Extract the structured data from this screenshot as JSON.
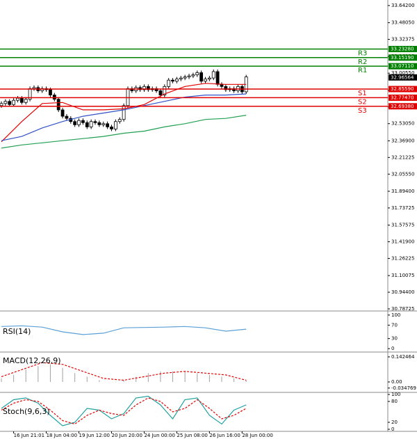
{
  "chart_data": [
    {
      "type": "candlestick",
      "open": [
        32.7,
        32.72,
        32.74,
        32.71,
        32.75,
        32.77,
        32.73,
        32.76,
        32.86,
        32.87,
        32.84,
        32.86,
        32.85,
        32.8,
        32.76,
        32.66,
        32.6,
        32.58,
        32.55,
        32.52,
        32.56,
        32.54,
        32.5,
        32.55,
        32.54,
        32.52,
        32.53,
        32.5,
        32.48,
        32.55,
        32.57,
        32.7,
        32.86,
        32.84,
        32.87,
        32.85,
        32.88,
        32.85,
        32.86,
        32.84,
        32.8,
        32.88,
        32.94,
        32.93,
        32.95,
        32.96,
        32.97,
        32.98,
        32.99,
        33.01,
        32.93,
        32.95,
        32.96,
        33.02,
        32.9,
        32.88,
        32.85,
        32.86,
        32.84,
        32.88,
        32.83
      ],
      "high": [
        32.74,
        32.76,
        32.76,
        32.77,
        32.79,
        32.79,
        32.78,
        32.88,
        32.89,
        32.89,
        32.88,
        32.88,
        32.87,
        32.82,
        32.78,
        32.68,
        32.62,
        32.6,
        32.57,
        32.58,
        32.58,
        32.56,
        32.57,
        32.57,
        32.56,
        32.55,
        32.55,
        32.52,
        32.57,
        32.59,
        32.72,
        32.88,
        32.88,
        32.89,
        32.89,
        32.9,
        32.9,
        32.88,
        32.88,
        32.86,
        32.9,
        32.96,
        32.96,
        32.97,
        32.98,
        32.99,
        33.0,
        33.01,
        33.03,
        33.03,
        32.97,
        32.98,
        33.04,
        33.04,
        32.92,
        32.9,
        32.88,
        32.88,
        32.9,
        32.9,
        32.99
      ],
      "low": [
        32.68,
        32.7,
        32.69,
        32.69,
        32.73,
        32.71,
        32.71,
        32.74,
        32.84,
        32.82,
        32.82,
        32.83,
        32.78,
        32.74,
        32.64,
        32.58,
        32.56,
        32.53,
        32.5,
        32.5,
        32.52,
        32.48,
        32.48,
        32.52,
        32.5,
        32.5,
        32.48,
        32.46,
        32.46,
        32.53,
        32.55,
        32.68,
        32.82,
        32.82,
        32.83,
        32.83,
        32.83,
        32.83,
        32.82,
        32.78,
        32.78,
        32.86,
        32.91,
        32.91,
        32.93,
        32.94,
        32.95,
        32.96,
        32.97,
        32.91,
        32.91,
        32.93,
        32.94,
        32.88,
        32.86,
        32.83,
        32.83,
        32.82,
        32.82,
        32.81,
        32.81
      ],
      "close": [
        32.72,
        32.74,
        32.71,
        32.75,
        32.77,
        32.73,
        32.76,
        32.86,
        32.87,
        32.84,
        32.86,
        32.85,
        32.8,
        32.76,
        32.66,
        32.6,
        32.58,
        32.55,
        32.52,
        32.56,
        32.54,
        32.5,
        32.55,
        32.54,
        32.52,
        32.53,
        32.5,
        32.48,
        32.55,
        32.57,
        32.7,
        32.86,
        32.84,
        32.87,
        32.85,
        32.88,
        32.85,
        32.86,
        32.84,
        32.8,
        32.88,
        32.94,
        32.93,
        32.95,
        32.96,
        32.97,
        32.98,
        32.99,
        33.01,
        32.93,
        32.95,
        32.96,
        33.02,
        32.9,
        32.88,
        32.85,
        32.86,
        32.84,
        32.88,
        32.83,
        32.97
      ],
      "up_color": "#ffffff",
      "down_color": "#000000",
      "wick_color": "#000000",
      "ylim": [
        30.774,
        33.681
      ],
      "yticks": [
        {
          "value": 33.642,
          "label": "33.64200"
        },
        {
          "value": 33.4805,
          "label": "33.48050"
        },
        33.32375,
        33.16225,
        {
          "value": 33.0055,
          "label": "33.00550"
        },
        {
          "value": 32.844,
          "label": "32.84400"
        },
        32.68725,
        {
          "value": 32.5305,
          "label": "32.53050"
        },
        {
          "value": 32.369,
          "label": "32.36900"
        },
        32.21225,
        {
          "value": 32.0555,
          "label": "32.05550"
        },
        {
          "value": 31.894,
          "label": "31.89400"
        },
        31.73725,
        31.57575,
        {
          "value": 31.419,
          "label": "31.41900"
        },
        31.26225,
        31.10075,
        {
          "value": 30.944,
          "label": "30.94400"
        },
        30.78725
      ],
      "xticks": [
        {
          "value": 3,
          "label": "16 Jun 21:01"
        },
        {
          "value": 11,
          "label": "18 Jun 04:00"
        },
        {
          "value": 19,
          "label": "19 Jun 12:00"
        },
        {
          "value": 27,
          "label": "20 Jun 20:00"
        },
        {
          "value": 35,
          "label": "24 Jun 00:00"
        },
        {
          "value": 43,
          "label": "25 Jun 08:00"
        },
        {
          "value": 51,
          "label": "26 Jun 16:00"
        },
        {
          "value": 59,
          "label": "28 Jun 00:00"
        }
      ],
      "series": [
        {
          "color": "#e00000",
          "x": [
            0,
            5,
            10,
            15,
            20,
            25,
            30,
            35,
            40,
            45,
            50,
            55,
            60
          ],
          "values": [
            32.36,
            32.55,
            32.72,
            32.73,
            32.66,
            32.66,
            32.67,
            32.71,
            32.81,
            32.88,
            32.91,
            32.9,
            32.9
          ]
        },
        {
          "color": "#3050c8",
          "x": [
            0,
            5,
            10,
            15,
            20,
            25,
            30,
            35,
            40,
            45,
            50,
            55,
            60
          ],
          "values": [
            32.37,
            32.41,
            32.49,
            32.55,
            32.6,
            32.63,
            32.66,
            32.7,
            32.74,
            32.78,
            32.8,
            32.8,
            32.81
          ]
        },
        {
          "color": "#20a050",
          "x": [
            0,
            5,
            10,
            15,
            20,
            25,
            30,
            35,
            40,
            45,
            50,
            55,
            60
          ],
          "values": [
            32.3,
            32.33,
            32.35,
            32.37,
            32.39,
            32.41,
            32.44,
            32.46,
            32.5,
            32.53,
            32.57,
            32.58,
            32.61
          ]
        }
      ],
      "levels": [
        {
          "label": "R3",
          "value": 33.2328,
          "value_label": "33.23280",
          "color": "#008000"
        },
        {
          "label": "R2",
          "value": 33.1519,
          "value_label": "33.15190",
          "color": "#008000"
        },
        {
          "label": "R1",
          "value": 33.0711,
          "value_label": "33.07110",
          "color": "#008000"
        },
        {
          "label": "S1",
          "value": 32.8559,
          "value_label": "32.85590",
          "color": "#e00000"
        },
        {
          "label": "S2",
          "value": 32.7747,
          "value_label": "32.77470",
          "color": "#e00000"
        },
        {
          "label": "S3",
          "value": 32.6938,
          "value_label": "32.69380",
          "color": "#e00000"
        }
      ],
      "last": {
        "value": 32.96564,
        "color": "#000000"
      }
    },
    {
      "type": "line",
      "title": "RSI(14)",
      "ylim": [
        -8,
        108
      ],
      "yticks": [
        100,
        70,
        30,
        0
      ],
      "series": [
        {
          "color": "#5aa0d8",
          "x": [
            0,
            5,
            10,
            15,
            20,
            25,
            30,
            35,
            40,
            45,
            50,
            55,
            60
          ],
          "values": [
            66,
            68,
            64,
            50,
            42,
            46,
            62,
            63,
            64,
            66,
            62,
            52,
            58
          ]
        }
      ]
    },
    {
      "type": "bar",
      "title": "MACD(12,26,9)",
      "ylim": [
        -0.0554,
        0.166
      ],
      "yticks": [
        0.142464,
        {
          "value": 0,
          "label": "0.00"
        },
        -0.034769
      ],
      "color": "#a0a0a0",
      "x": [
        0,
        3,
        6,
        9,
        12,
        15,
        18,
        21,
        24,
        27,
        30,
        33,
        36,
        39,
        42,
        45,
        48,
        51,
        54,
        57,
        60
      ],
      "values": [
        0.02,
        0.04,
        0.07,
        0.09,
        0.1,
        0.08,
        0.05,
        0.03,
        0.01,
        0.0,
        0.01,
        0.03,
        0.05,
        0.06,
        0.06,
        0.06,
        0.05,
        0.04,
        0.03,
        0.02,
        0.01
      ],
      "series": [
        {
          "color": "#e00000",
          "dash": true,
          "x": [
            0,
            5,
            10,
            15,
            20,
            25,
            30,
            35,
            40,
            45,
            50,
            55,
            60
          ],
          "values": [
            0.03,
            0.07,
            0.11,
            0.1,
            0.06,
            0.02,
            0.01,
            0.03,
            0.05,
            0.06,
            0.05,
            0.04,
            0.01
          ]
        }
      ]
    },
    {
      "type": "line",
      "title": "Stoch(9,6,3)",
      "ylim": [
        -6,
        104
      ],
      "yticks": [
        100,
        80,
        20,
        0
      ],
      "series": [
        {
          "color": "#20a0a0",
          "x": [
            0,
            3,
            6,
            9,
            12,
            15,
            18,
            21,
            24,
            27,
            30,
            33,
            36,
            39,
            42,
            45,
            48,
            51,
            54,
            57,
            60
          ],
          "values": [
            60,
            85,
            90,
            75,
            40,
            10,
            20,
            60,
            55,
            30,
            45,
            90,
            95,
            70,
            30,
            85,
            90,
            40,
            15,
            55,
            70
          ]
        },
        {
          "color": "#e00000",
          "dash": true,
          "x": [
            0,
            3,
            6,
            9,
            12,
            15,
            18,
            21,
            24,
            27,
            30,
            33,
            36,
            39,
            42,
            45,
            48,
            51,
            54,
            57,
            60
          ],
          "values": [
            55,
            75,
            85,
            80,
            55,
            25,
            15,
            40,
            55,
            45,
            40,
            70,
            90,
            80,
            50,
            60,
            85,
            60,
            30,
            40,
            60
          ]
        }
      ]
    }
  ]
}
